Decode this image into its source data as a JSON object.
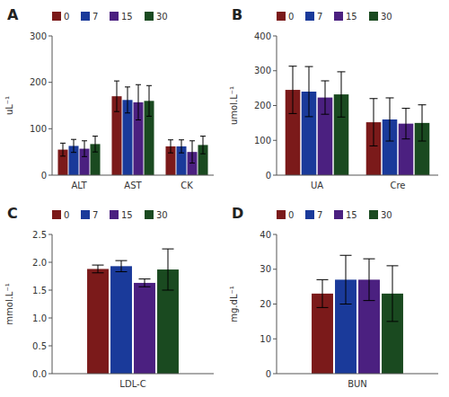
{
  "chart_data": [
    {
      "type": "bar",
      "title": "A",
      "y_label": "uL⁻¹",
      "categories": [
        "ALT",
        "AST",
        "CK"
      ],
      "series": [
        {
          "name": "0",
          "color": "#7B1A1A",
          "values": [
            55,
            170,
            62
          ],
          "errors": [
            14,
            33,
            14
          ]
        },
        {
          "name": "7",
          "color": "#1A3A9A",
          "values": [
            63,
            162,
            62
          ],
          "errors": [
            14,
            28,
            14
          ]
        },
        {
          "name": "15",
          "color": "#4B2080",
          "values": [
            57,
            157,
            50
          ],
          "errors": [
            17,
            38,
            24
          ]
        },
        {
          "name": "30",
          "color": "#1A4A20",
          "values": [
            67,
            160,
            65
          ],
          "errors": [
            17,
            33,
            19
          ]
        }
      ],
      "ylim": [
        0,
        300
      ],
      "yticks": [
        0,
        100,
        200,
        300
      ],
      "grid": false,
      "legend": "top"
    },
    {
      "type": "bar",
      "title": "B",
      "y_label": "umol.L⁻¹",
      "categories": [
        "UA",
        "Cre"
      ],
      "series": [
        {
          "name": "0",
          "color": "#7B1A1A",
          "values": [
            245,
            152
          ],
          "errors": [
            68,
            68
          ]
        },
        {
          "name": "7",
          "color": "#1A3A9A",
          "values": [
            240,
            160
          ],
          "errors": [
            72,
            62
          ]
        },
        {
          "name": "15",
          "color": "#4B2080",
          "values": [
            223,
            148
          ],
          "errors": [
            48,
            44
          ]
        },
        {
          "name": "30",
          "color": "#1A4A20",
          "values": [
            232,
            150
          ],
          "errors": [
            65,
            52
          ]
        }
      ],
      "ylim": [
        0,
        400
      ],
      "yticks": [
        0,
        100,
        200,
        300,
        400
      ],
      "grid": false,
      "legend": "top"
    },
    {
      "type": "bar",
      "title": "C",
      "y_label": "mmol.L⁻¹",
      "categories": [
        "LDL-C"
      ],
      "series": [
        {
          "name": "0",
          "color": "#7B1A1A",
          "values": [
            1.88
          ],
          "errors": [
            0.07
          ]
        },
        {
          "name": "7",
          "color": "#1A3A9A",
          "values": [
            1.93
          ],
          "errors": [
            0.1
          ]
        },
        {
          "name": "15",
          "color": "#4B2080",
          "values": [
            1.63
          ],
          "errors": [
            0.07
          ]
        },
        {
          "name": "30",
          "color": "#1A4A20",
          "values": [
            1.87
          ],
          "errors": [
            0.37
          ]
        }
      ],
      "ylim": [
        0,
        2.5
      ],
      "yticks": [
        {
          "value": 0,
          "label": "0.0"
        },
        0.5,
        {
          "value": 1,
          "label": "1.0"
        },
        1.5,
        {
          "value": 2,
          "label": "2.0"
        },
        2.5
      ],
      "grid": false,
      "legend": "top"
    },
    {
      "type": "bar",
      "title": "D",
      "y_label": "mg.dL⁻¹",
      "categories": [
        "BUN"
      ],
      "series": [
        {
          "name": "0",
          "color": "#7B1A1A",
          "values": [
            23
          ],
          "errors": [
            4
          ]
        },
        {
          "name": "7",
          "color": "#1A3A9A",
          "values": [
            27
          ],
          "errors": [
            7
          ]
        },
        {
          "name": "15",
          "color": "#4B2080",
          "values": [
            27
          ],
          "errors": [
            6
          ]
        },
        {
          "name": "30",
          "color": "#1A4A20",
          "values": [
            23
          ],
          "errors": [
            8
          ]
        }
      ],
      "ylim": [
        0,
        40
      ],
      "yticks": [
        0,
        10,
        20,
        30,
        40
      ],
      "grid": false,
      "legend": "top"
    }
  ]
}
